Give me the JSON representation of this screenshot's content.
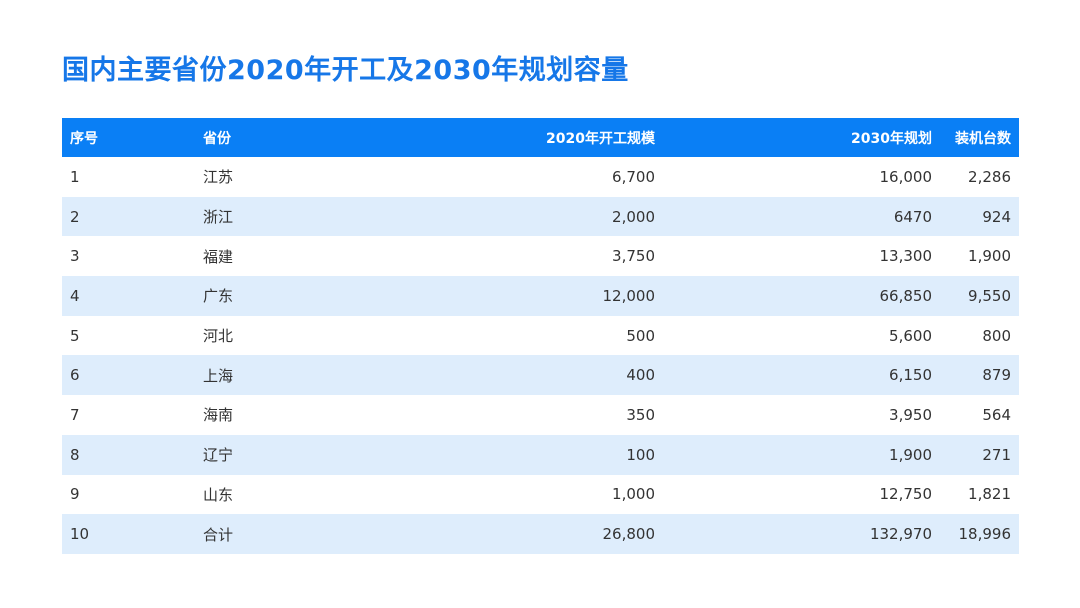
{
  "title": "国内主要省份2020年开工及2030年规划容量",
  "table": {
    "headers": [
      "序号",
      "省份",
      "2020年开工规模",
      "2030年规划",
      "装机台数"
    ],
    "rows": [
      [
        "1",
        "江苏",
        "6,700",
        "16,000",
        "2,286"
      ],
      [
        "2",
        "浙江",
        "2,000",
        "6470",
        "924"
      ],
      [
        "3",
        "福建",
        "3,750",
        "13,300",
        "1,900"
      ],
      [
        "4",
        "广东",
        "12,000",
        "66,850",
        "9,550"
      ],
      [
        "5",
        "河北",
        "500",
        "5,600",
        "800"
      ],
      [
        "6",
        "上海",
        "400",
        "6,150",
        "879"
      ],
      [
        "7",
        "海南",
        "350",
        "3,950",
        "564"
      ],
      [
        "8",
        "辽宁",
        "100",
        "1,900",
        "271"
      ],
      [
        "9",
        "山东",
        "1,000",
        "12,750",
        "1,821"
      ],
      [
        "10",
        "合计",
        "26,800",
        "132,970",
        "18,996"
      ]
    ]
  },
  "colors": {
    "title": "#1677e8",
    "header_bg": "#0a7ff5",
    "stripe_bg": "#deedfc",
    "text": "#333333"
  }
}
